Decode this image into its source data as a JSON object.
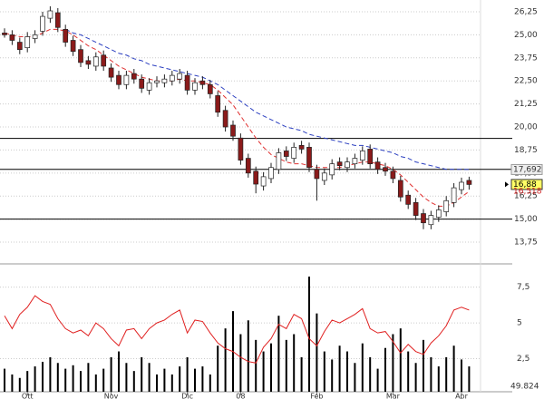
{
  "chart_data": {
    "type": "candlestick",
    "categories": [
      null,
      null,
      null,
      "Ott",
      null,
      null,
      null,
      null,
      null,
      null,
      null,
      null,
      null,
      null,
      "Nov",
      null,
      null,
      null,
      null,
      null,
      null,
      null,
      null,
      null,
      "Dic",
      null,
      null,
      null,
      null,
      null,
      null,
      "08",
      null,
      null,
      null,
      null,
      null,
      null,
      null,
      null,
      null,
      "Feb",
      null,
      null,
      null,
      null,
      null,
      null,
      null,
      null,
      null,
      "Mar",
      null,
      null,
      null,
      null,
      null,
      null,
      null,
      null,
      "Apr",
      null
    ],
    "open": [
      25.1,
      25.0,
      24.6,
      24.3,
      24.8,
      25.2,
      25.9,
      26.2,
      25.3,
      24.7,
      24.2,
      23.6,
      23.3,
      23.9,
      23.2,
      22.8,
      22.3,
      22.9,
      22.6,
      22.0,
      22.4,
      22.4,
      22.5,
      22.6,
      22.8,
      22.0,
      22.5,
      22.3,
      21.7,
      20.9,
      20.1,
      19.4,
      18.3,
      17.6,
      16.8,
      17.2,
      17.7,
      18.7,
      18.3,
      19.0,
      18.9,
      17.7,
      17.1,
      17.4,
      18.1,
      17.8,
      18.0,
      18.2,
      18.8,
      18.1,
      17.8,
      17.6,
      17.1,
      16.3,
      15.9,
      15.3,
      14.7,
      15.1,
      15.4,
      15.9,
      16.6,
      17.1
    ],
    "high": [
      25.35,
      25.25,
      24.85,
      25.15,
      25.25,
      26.25,
      26.55,
      26.45,
      25.55,
      24.95,
      24.45,
      23.85,
      24.05,
      24.15,
      23.45,
      23.05,
      23.05,
      23.15,
      22.85,
      22.65,
      22.75,
      22.85,
      23.05,
      23.15,
      23.05,
      22.65,
      22.75,
      22.55,
      21.95,
      21.15,
      20.35,
      19.65,
      18.55,
      17.85,
      17.55,
      18.05,
      18.85,
      18.95,
      19.15,
      19.25,
      19.15,
      17.95,
      17.75,
      18.25,
      18.35,
      18.35,
      18.55,
      18.95,
      19.05,
      18.35,
      18.05,
      17.85,
      17.35,
      16.55,
      16.15,
      15.55,
      15.45,
      15.75,
      16.25,
      16.95,
      17.25,
      17.3
    ],
    "low": [
      24.85,
      24.45,
      23.95,
      24.05,
      24.55,
      24.95,
      25.65,
      25.15,
      24.35,
      23.85,
      23.25,
      23.15,
      23.05,
      23.05,
      22.45,
      22.05,
      22.05,
      22.35,
      21.85,
      21.75,
      22.15,
      22.15,
      22.25,
      22.35,
      21.75,
      21.75,
      22.05,
      21.55,
      20.55,
      19.75,
      19.25,
      17.95,
      17.25,
      16.4,
      16.55,
      16.95,
      17.45,
      18.15,
      18.05,
      18.55,
      17.55,
      16.0,
      16.85,
      17.15,
      17.65,
      17.55,
      17.75,
      17.95,
      17.75,
      17.45,
      17.35,
      16.95,
      15.95,
      15.55,
      14.95,
      14.45,
      14.45,
      14.85,
      15.15,
      15.65,
      16.35,
      16.6
    ],
    "close": [
      25.0,
      24.7,
      24.2,
      24.9,
      25.0,
      26.0,
      26.3,
      25.4,
      24.6,
      24.1,
      23.5,
      23.4,
      23.8,
      23.3,
      22.7,
      22.3,
      22.8,
      22.6,
      22.1,
      22.4,
      22.5,
      22.6,
      22.8,
      22.9,
      22.0,
      22.4,
      22.3,
      21.8,
      20.8,
      20.0,
      19.5,
      18.2,
      17.5,
      16.9,
      17.3,
      17.8,
      18.6,
      18.4,
      18.9,
      18.8,
      17.8,
      17.2,
      17.5,
      18.0,
      17.9,
      18.1,
      18.3,
      18.7,
      18.0,
      17.7,
      17.6,
      17.2,
      16.2,
      15.8,
      15.2,
      14.8,
      15.2,
      15.5,
      16.0,
      16.7,
      17.0,
      16.88
    ],
    "up_color": "#ffffff",
    "down_color": "#8b1a1a",
    "series": [
      {
        "color": "#e03030",
        "values": [
          25.1,
          25.0,
          24.9,
          24.9,
          24.9,
          25.1,
          25.3,
          25.3,
          25.2,
          25.0,
          24.7,
          24.4,
          24.2,
          23.9,
          23.6,
          23.3,
          23.1,
          22.9,
          22.7,
          22.6,
          22.5,
          22.5,
          22.5,
          22.6,
          22.5,
          22.5,
          22.4,
          22.3,
          22.0,
          21.6,
          21.2,
          20.6,
          20.0,
          19.4,
          18.9,
          18.5,
          18.3,
          18.1,
          18.0,
          18.0,
          17.9,
          17.8,
          17.8,
          17.8,
          17.8,
          17.9,
          18.0,
          18.1,
          18.1,
          18.0,
          17.9,
          17.7,
          17.4,
          17.0,
          16.6,
          16.2,
          15.9,
          15.7,
          15.7,
          15.9,
          16.2,
          16.5
        ]
      },
      {
        "color": "#2b3fc0",
        "values": [
          null,
          null,
          null,
          null,
          null,
          null,
          null,
          null,
          25.3,
          25.1,
          25.0,
          24.8,
          24.6,
          24.4,
          24.2,
          24.0,
          23.9,
          23.7,
          23.6,
          23.4,
          23.3,
          23.2,
          23.1,
          23.0,
          22.9,
          22.8,
          22.7,
          22.5,
          22.3,
          22.0,
          21.7,
          21.4,
          21.1,
          20.8,
          20.6,
          20.4,
          20.2,
          20.0,
          19.9,
          19.8,
          19.6,
          19.5,
          19.4,
          19.3,
          19.2,
          19.1,
          19.0,
          19.0,
          18.9,
          18.8,
          18.7,
          18.6,
          18.4,
          18.3,
          18.1,
          18.0,
          17.9,
          17.8,
          17.7,
          17.7,
          17.7,
          17.692
        ]
      }
    ],
    "levels": [
      19.38,
      17.7,
      15.0
    ],
    "ylim": [
      12.62,
      26.89
    ],
    "yticks": [
      {
        "value": 13.75,
        "label": "13,75"
      },
      {
        "value": 15.0,
        "label": "15,00"
      },
      {
        "value": 16.25,
        "label": "16,25"
      },
      {
        "value": 17.5,
        "label": "17,50"
      },
      {
        "value": 18.75,
        "label": "18,75"
      },
      {
        "value": 20.0,
        "label": "20,00"
      },
      {
        "value": 21.25,
        "label": "21,25"
      },
      {
        "value": 22.5,
        "label": "22,50"
      },
      {
        "value": 23.75,
        "label": "23,75"
      },
      {
        "value": 25.0,
        "label": "25,00"
      },
      {
        "value": 26.25,
        "label": "26,25"
      }
    ],
    "price_labels": [
      {
        "value": 17.692,
        "label": "17,692"
      },
      {
        "value": 16.88,
        "label": "16,88"
      },
      {
        "value": 16.518,
        "label": "16,518"
      }
    ],
    "oscillator": {
      "color": "#e02020",
      "values": [
        5.5,
        4.6,
        5.6,
        6.1,
        6.9,
        6.5,
        6.3,
        5.3,
        4.6,
        4.3,
        4.5,
        4.1,
        5.0,
        4.6,
        3.9,
        3.4,
        4.5,
        4.6,
        3.9,
        4.6,
        5.0,
        5.2,
        5.6,
        5.9,
        4.3,
        5.2,
        5.1,
        4.3,
        3.6,
        3.2,
        3.0,
        2.6,
        2.3,
        2.2,
        3.3,
        3.9,
        4.9,
        4.6,
        5.6,
        5.3,
        3.9,
        3.4,
        4.4,
        5.2,
        5.0,
        5.3,
        5.6,
        6.0,
        4.6,
        4.3,
        4.4,
        3.7,
        2.9,
        3.5,
        3.0,
        2.8,
        3.6,
        4.1,
        4.8,
        5.9,
        6.1,
        5.9
      ],
      "ylim": [
        0,
        9
      ],
      "yticks": [
        {
          "value": 2.5,
          "label": "2,5"
        },
        5,
        {
          "value": 7.5,
          "label": "7,5"
        }
      ]
    },
    "volume": {
      "color": "#000000",
      "values": [
        20,
        15,
        12,
        18,
        22,
        26,
        30,
        25,
        20,
        23,
        18,
        25,
        15,
        20,
        30,
        35,
        25,
        18,
        30,
        25,
        15,
        20,
        15,
        22,
        30,
        20,
        22,
        15,
        40,
        55,
        70,
        50,
        62,
        45,
        35,
        42,
        66,
        45,
        50,
        30,
        100,
        68,
        35,
        28,
        40,
        35,
        25,
        42,
        30,
        20,
        38,
        50,
        55,
        35,
        25,
        45,
        30,
        22,
        30,
        40,
        28,
        22
      ],
      "ylim": [
        0,
        100
      ],
      "label": "49.824"
    }
  }
}
